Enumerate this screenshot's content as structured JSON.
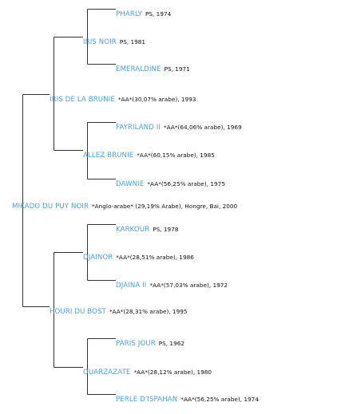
{
  "colors": {
    "name": "#4a9fd6",
    "line": "#333333",
    "detail": "#111111"
  },
  "pedigree": {
    "subject": {
      "name": "MIKADO DU PUY NOIR",
      "detail": "*Anglo-arabe* (29,19% Arabe), Hongre, Bai, 2000"
    },
    "sire": {
      "name": "IRIS DE LA BRUNIE",
      "detail": "*AA*(30,07% arabe), 1993"
    },
    "sire_sire": {
      "name": "IRIS NOIR",
      "detail": "PS, 1981"
    },
    "sss": {
      "name": "PHARLY",
      "detail": "PS, 1974"
    },
    "ssd": {
      "name": "EMERALDINE",
      "detail": "PS, 1971"
    },
    "sire_dam": {
      "name": "ALLEZ BRUNIE",
      "detail": "*AA*(60,15% arabe), 1985"
    },
    "sds": {
      "name": "FAYRILAND II",
      "detail": "*AA*(64,06% arabe), 1969"
    },
    "sdd": {
      "name": "DAWNIE",
      "detail": "*AA*(56,25% arabe), 1975"
    },
    "dam": {
      "name": "HOURI DU BOST",
      "detail": "*AA*(28,31% arabe), 1995"
    },
    "dam_sire": {
      "name": "DJAINOR",
      "detail": "*AA*(28,51% arabe), 1986"
    },
    "dss": {
      "name": "KARKOUR",
      "detail": "PS, 1978"
    },
    "dsd": {
      "name": "DJAINA II",
      "detail": "*AA*(57,03% arabe), 1972"
    },
    "dam_dam": {
      "name": "OUARZAZATE",
      "detail": "*AA*(28,12% arabe), 1980"
    },
    "dds": {
      "name": "PARIS JOUR",
      "detail": "PS, 1962"
    },
    "ddd": {
      "name": "PERLE D'ISPAHAN",
      "detail": "*AA*(56,25% arabe), 1974"
    }
  }
}
